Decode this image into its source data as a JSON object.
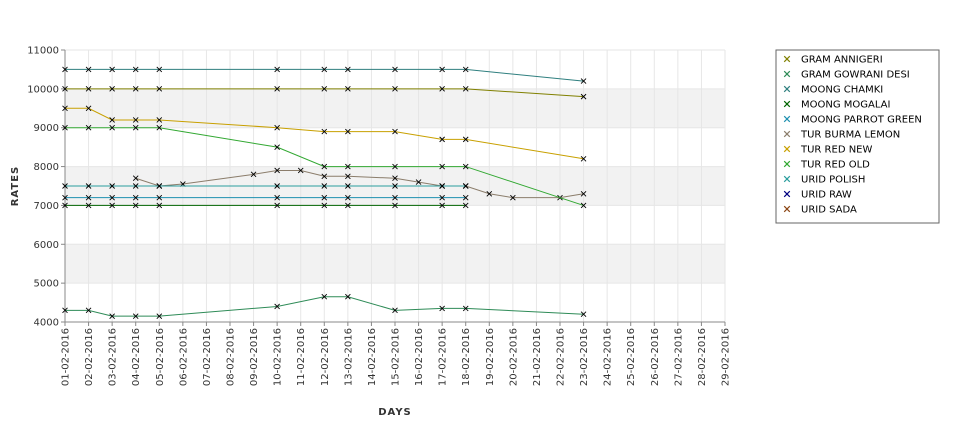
{
  "chart_data": {
    "type": "line",
    "xlabel": "DAYS",
    "ylabel": "RATES",
    "ylim": [
      4000,
      11000
    ],
    "yticks": [
      4000,
      5000,
      6000,
      7000,
      8000,
      9000,
      10000,
      11000
    ],
    "grid": true,
    "legend_position": "right",
    "categories": [
      "01-02-2016",
      "02-02-2016",
      "03-02-2016",
      "04-02-2016",
      "05-02-2016",
      "06-02-2016",
      "07-02-2016",
      "08-02-2016",
      "09-02-2016",
      "10-02-2016",
      "11-02-2016",
      "12-02-2016",
      "13-02-2016",
      "14-02-2016",
      "15-02-2016",
      "16-02-2016",
      "17-02-2016",
      "18-02-2016",
      "19-02-2016",
      "20-02-2016",
      "21-02-2016",
      "22-02-2016",
      "23-02-2016",
      "24-02-2016",
      "25-02-2016",
      "26-02-2016",
      "27-02-2016",
      "28-02-2016",
      "29-02-2016"
    ],
    "series": [
      {
        "name": "GRAM ANNIGERI",
        "color": "#808000",
        "points": [
          [
            "01-02-2016",
            10000
          ],
          [
            "02-02-2016",
            10000
          ],
          [
            "03-02-2016",
            10000
          ],
          [
            "04-02-2016",
            10000
          ],
          [
            "05-02-2016",
            10000
          ],
          [
            "10-02-2016",
            10000
          ],
          [
            "12-02-2016",
            10000
          ],
          [
            "13-02-2016",
            10000
          ],
          [
            "15-02-2016",
            10000
          ],
          [
            "17-02-2016",
            10000
          ],
          [
            "18-02-2016",
            10000
          ],
          [
            "23-02-2016",
            9800
          ]
        ]
      },
      {
        "name": "GRAM GOWRANI DESI",
        "color": "#2e8b57",
        "points": [
          [
            "01-02-2016",
            4300
          ],
          [
            "02-02-2016",
            4300
          ],
          [
            "03-02-2016",
            4150
          ],
          [
            "04-02-2016",
            4150
          ],
          [
            "05-02-2016",
            4150
          ],
          [
            "10-02-2016",
            4400
          ],
          [
            "12-02-2016",
            4650
          ],
          [
            "13-02-2016",
            4650
          ],
          [
            "15-02-2016",
            4300
          ],
          [
            "17-02-2016",
            4350
          ],
          [
            "18-02-2016",
            4350
          ],
          [
            "23-02-2016",
            4200
          ]
        ]
      },
      {
        "name": "MOONG CHAMKI",
        "color": "#2f7f7f",
        "points": [
          [
            "01-02-2016",
            10500
          ],
          [
            "02-02-2016",
            10500
          ],
          [
            "03-02-2016",
            10500
          ],
          [
            "04-02-2016",
            10500
          ],
          [
            "05-02-2016",
            10500
          ],
          [
            "10-02-2016",
            10500
          ],
          [
            "12-02-2016",
            10500
          ],
          [
            "13-02-2016",
            10500
          ],
          [
            "15-02-2016",
            10500
          ],
          [
            "17-02-2016",
            10500
          ],
          [
            "18-02-2016",
            10500
          ],
          [
            "23-02-2016",
            10200
          ]
        ]
      },
      {
        "name": "MOONG MOGALAI",
        "color": "#006400",
        "points": [
          [
            "01-02-2016",
            7000
          ],
          [
            "02-02-2016",
            7000
          ],
          [
            "03-02-2016",
            7000
          ],
          [
            "04-02-2016",
            7000
          ],
          [
            "05-02-2016",
            7000
          ],
          [
            "10-02-2016",
            7000
          ],
          [
            "12-02-2016",
            7000
          ],
          [
            "13-02-2016",
            7000
          ],
          [
            "15-02-2016",
            7000
          ],
          [
            "17-02-2016",
            7000
          ],
          [
            "18-02-2016",
            7000
          ]
        ]
      },
      {
        "name": "MOONG PARROT GREEN",
        "color": "#1e90b0",
        "points": [
          [
            "01-02-2016",
            7200
          ],
          [
            "02-02-2016",
            7200
          ],
          [
            "03-02-2016",
            7200
          ],
          [
            "04-02-2016",
            7200
          ],
          [
            "05-02-2016",
            7200
          ],
          [
            "10-02-2016",
            7200
          ],
          [
            "12-02-2016",
            7200
          ],
          [
            "13-02-2016",
            7200
          ],
          [
            "15-02-2016",
            7200
          ],
          [
            "17-02-2016",
            7200
          ],
          [
            "18-02-2016",
            7200
          ]
        ]
      },
      {
        "name": "TUR BURMA LEMON",
        "color": "#8b7d6b",
        "points": [
          [
            "04-02-2016",
            7700
          ],
          [
            "05-02-2016",
            7500
          ],
          [
            "06-02-2016",
            7550
          ],
          [
            "09-02-2016",
            7800
          ],
          [
            "10-02-2016",
            7900
          ],
          [
            "11-02-2016",
            7900
          ],
          [
            "12-02-2016",
            7750
          ],
          [
            "13-02-2016",
            7750
          ],
          [
            "15-02-2016",
            7700
          ],
          [
            "16-02-2016",
            7600
          ],
          [
            "17-02-2016",
            7500
          ],
          [
            "18-02-2016",
            7500
          ],
          [
            "19-02-2016",
            7300
          ],
          [
            "20-02-2016",
            7200
          ],
          [
            "22-02-2016",
            7200
          ],
          [
            "23-02-2016",
            7300
          ]
        ]
      },
      {
        "name": "TUR RED NEW",
        "color": "#c8a000",
        "points": [
          [
            "01-02-2016",
            9500
          ],
          [
            "02-02-2016",
            9500
          ],
          [
            "03-02-2016",
            9200
          ],
          [
            "04-02-2016",
            9200
          ],
          [
            "05-02-2016",
            9200
          ],
          [
            "10-02-2016",
            9000
          ],
          [
            "12-02-2016",
            8900
          ],
          [
            "13-02-2016",
            8900
          ],
          [
            "15-02-2016",
            8900
          ],
          [
            "17-02-2016",
            8700
          ],
          [
            "18-02-2016",
            8700
          ],
          [
            "23-02-2016",
            8200
          ]
        ]
      },
      {
        "name": "TUR RED OLD",
        "color": "#32a832",
        "points": [
          [
            "01-02-2016",
            9000
          ],
          [
            "02-02-2016",
            9000
          ],
          [
            "03-02-2016",
            9000
          ],
          [
            "04-02-2016",
            9000
          ],
          [
            "05-02-2016",
            9000
          ],
          [
            "10-02-2016",
            8500
          ],
          [
            "12-02-2016",
            8000
          ],
          [
            "13-02-2016",
            8000
          ],
          [
            "15-02-2016",
            8000
          ],
          [
            "17-02-2016",
            8000
          ],
          [
            "18-02-2016",
            8000
          ],
          [
            "23-02-2016",
            7000
          ]
        ]
      },
      {
        "name": "URID POLISH",
        "color": "#2a9d9d",
        "points": [
          [
            "01-02-2016",
            7500
          ],
          [
            "02-02-2016",
            7500
          ],
          [
            "03-02-2016",
            7500
          ],
          [
            "04-02-2016",
            7500
          ],
          [
            "05-02-2016",
            7500
          ],
          [
            "10-02-2016",
            7500
          ],
          [
            "12-02-2016",
            7500
          ],
          [
            "13-02-2016",
            7500
          ],
          [
            "15-02-2016",
            7500
          ],
          [
            "17-02-2016",
            7500
          ],
          [
            "18-02-2016",
            7500
          ]
        ]
      },
      {
        "name": "URID RAW",
        "color": "#000080",
        "points": []
      },
      {
        "name": "URID SADA",
        "color": "#8b4513",
        "points": []
      }
    ]
  }
}
